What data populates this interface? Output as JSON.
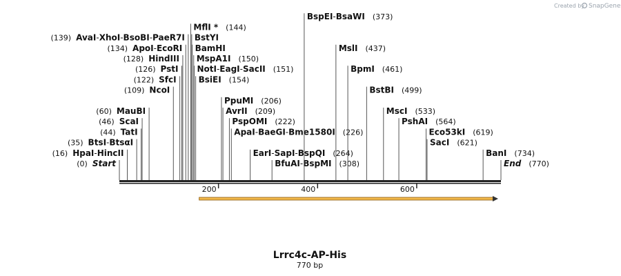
{
  "credit": {
    "prefix": "Created by",
    "brand": "SnapGene"
  },
  "sequence": {
    "name": "Lrrc4c-AP-His",
    "length_label": "770 bp",
    "length": 770
  },
  "axis": {
    "ticks": [
      {
        "value": 200,
        "label": "200"
      },
      {
        "value": 400,
        "label": "400"
      },
      {
        "value": 600,
        "label": "600"
      }
    ]
  },
  "feature": {
    "start": 161,
    "end": 770,
    "direction": "forward",
    "color": "#f2b84b"
  },
  "sites": [
    {
      "names": [
        "Start"
      ],
      "pos": "(0)",
      "bp": 0,
      "italic": true,
      "side": "left",
      "row": 0
    },
    {
      "names": [
        "HpaI",
        "HincII"
      ],
      "pos": "(16)",
      "bp": 16,
      "side": "left",
      "row": 1
    },
    {
      "names": [
        "BtsI",
        "BtsαI"
      ],
      "pos": "(35)",
      "bp": 35,
      "side": "left",
      "row": 2
    },
    {
      "names": [
        "TatI"
      ],
      "pos": "(44)",
      "bp": 44,
      "side": "left",
      "row": 3
    },
    {
      "names": [
        "ScaI"
      ],
      "pos": "(46)",
      "bp": 46,
      "side": "left",
      "row": 4
    },
    {
      "names": [
        "MauBI"
      ],
      "pos": "(60)",
      "bp": 60,
      "side": "left",
      "row": 5
    },
    {
      "names": [
        "NcoI"
      ],
      "pos": "(109)",
      "bp": 109,
      "side": "left",
      "row": 7
    },
    {
      "names": [
        "SfcI"
      ],
      "pos": "(122)",
      "bp": 122,
      "side": "left",
      "row": 8
    },
    {
      "names": [
        "PstI"
      ],
      "pos": "(126)",
      "bp": 126,
      "side": "left",
      "row": 9
    },
    {
      "names": [
        "HindIII"
      ],
      "pos": "(128)",
      "bp": 128,
      "side": "left",
      "row": 10
    },
    {
      "names": [
        "ApoI",
        "EcoRI"
      ],
      "pos": "(134)",
      "bp": 134,
      "side": "left",
      "row": 11
    },
    {
      "names": [
        "AvaI",
        "XhoI",
        "BsoBI",
        "PaeR7I"
      ],
      "pos": "(139)",
      "bp": 139,
      "side": "left",
      "row": 12
    },
    {
      "names": [
        "BsiEI"
      ],
      "pos": "(154)",
      "bp": 154,
      "side": "right",
      "row": 8
    },
    {
      "names": [
        "NotI",
        "EagI",
        "SacII"
      ],
      "pos": "(151)",
      "bp": 151,
      "side": "right",
      "row": 9
    },
    {
      "names": [
        "MspA1I"
      ],
      "pos": "(150)",
      "bp": 150,
      "side": "right",
      "row": 10
    },
    {
      "names": [
        "BamHI"
      ],
      "pos": "",
      "bp": 147,
      "side": "right",
      "row": 11
    },
    {
      "names": [
        "BstYI"
      ],
      "pos": "",
      "bp": 146,
      "side": "right",
      "row": 12
    },
    {
      "names": [
        "MflI *"
      ],
      "pos": "(144)",
      "bp": 144,
      "side": "right",
      "row": 13
    },
    {
      "names": [
        "PpuMI"
      ],
      "pos": "(206)",
      "bp": 206,
      "side": "right",
      "row": 6
    },
    {
      "names": [
        "AvrII"
      ],
      "pos": "(209)",
      "bp": 209,
      "side": "right",
      "row": 5
    },
    {
      "names": [
        "PspOMI"
      ],
      "pos": "(222)",
      "bp": 222,
      "side": "right",
      "row": 4
    },
    {
      "names": [
        "ApaI",
        "BaeGI",
        "Bme1580I"
      ],
      "pos": "(226)",
      "bp": 226,
      "side": "right",
      "row": 3
    },
    {
      "names": [
        "EarI",
        "SapI",
        "BspQI"
      ],
      "pos": "(264)",
      "bp": 264,
      "side": "right",
      "row": 1
    },
    {
      "names": [
        "BfuAI",
        "BspMI"
      ],
      "pos": "(308)",
      "bp": 308,
      "side": "right",
      "row": 0
    },
    {
      "names": [
        "BspEI",
        "BsaWI"
      ],
      "pos": "(373)",
      "bp": 373,
      "side": "right",
      "row": 14
    },
    {
      "names": [
        "MslI"
      ],
      "pos": "(437)",
      "bp": 437,
      "side": "right",
      "row": 11
    },
    {
      "names": [
        "BpmI"
      ],
      "pos": "(461)",
      "bp": 461,
      "side": "right",
      "row": 9
    },
    {
      "names": [
        "BstBI"
      ],
      "pos": "(499)",
      "bp": 499,
      "side": "right",
      "row": 7
    },
    {
      "names": [
        "MscI"
      ],
      "pos": "(533)",
      "bp": 533,
      "side": "right",
      "row": 5
    },
    {
      "names": [
        "PshAI"
      ],
      "pos": "(564)",
      "bp": 564,
      "side": "right",
      "row": 4
    },
    {
      "names": [
        "Eco53kI"
      ],
      "pos": "(619)",
      "bp": 619,
      "side": "right",
      "row": 3
    },
    {
      "names": [
        "SacI"
      ],
      "pos": "(621)",
      "bp": 621,
      "side": "right",
      "row": 2
    },
    {
      "names": [
        "BanI"
      ],
      "pos": "(734)",
      "bp": 734,
      "side": "right",
      "row": 1
    },
    {
      "names": [
        "End"
      ],
      "pos": "(770)",
      "bp": 770,
      "italic": true,
      "side": "right",
      "row": 0
    }
  ]
}
